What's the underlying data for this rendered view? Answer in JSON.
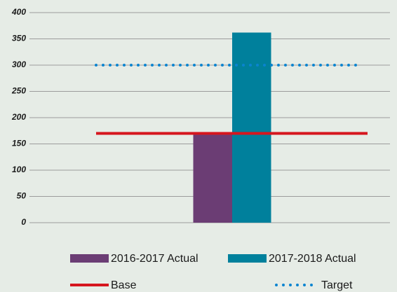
{
  "chart_data": {
    "type": "bar",
    "categories": [
      null
    ],
    "series": [
      {
        "name": "2016-2017 Actual",
        "color": "#6b3d74",
        "values": [
          170
        ]
      },
      {
        "name": "2017-2018 Actual",
        "color": "#00809c",
        "values": [
          362
        ]
      },
      {
        "name": "Base",
        "color": "#d6161e",
        "type": "line",
        "style": "solid",
        "values": [
          170
        ]
      },
      {
        "name": "Target",
        "color": "#0a84d0",
        "type": "line",
        "style": "dotted",
        "values": [
          300
        ]
      }
    ],
    "ylim": [
      0,
      400
    ],
    "yticks": [
      0,
      50,
      100,
      150,
      200,
      250,
      300,
      350,
      400
    ],
    "grid": true
  }
}
